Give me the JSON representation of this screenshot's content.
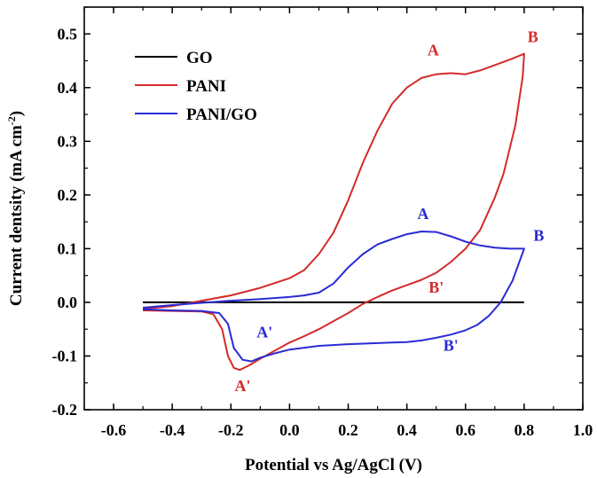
{
  "chart_data": {
    "type": "line",
    "xlabel": "Potential vs Ag/AgCl (V)",
    "ylabel_main": "Current dentsity (mA cm",
    "ylabel_sup": "-2",
    "ylabel_close": ")",
    "xlim": [
      -0.7,
      1.0
    ],
    "ylim": [
      -0.2,
      0.55
    ],
    "x_ticks": [
      -0.6,
      -0.4,
      -0.2,
      0.0,
      0.2,
      0.4,
      0.6,
      0.8,
      1.0
    ],
    "x_tick_labels": [
      "-0.6",
      "-0.4",
      "-0.2",
      "0.0",
      "0.2",
      "0.4",
      "0.6",
      "0.8",
      "1.0"
    ],
    "y_ticks": [
      -0.2,
      -0.1,
      0.0,
      0.1,
      0.2,
      0.3,
      0.4,
      0.5
    ],
    "y_tick_labels": [
      "-0.2",
      "-0.1",
      "0.0",
      "0.1",
      "0.2",
      "0.3",
      "0.4",
      "0.5"
    ],
    "grid": false,
    "legend_position": "top-left",
    "series": [
      {
        "name": "GO",
        "color": "#000000",
        "points": [
          [
            -0.5,
            0.0
          ],
          [
            0.8,
            0.0
          ]
        ]
      },
      {
        "name": "PANI",
        "color": "#d42a2a",
        "points": [
          [
            -0.5,
            -0.012
          ],
          [
            -0.4,
            -0.007
          ],
          [
            -0.3,
            0.003
          ],
          [
            -0.2,
            0.013
          ],
          [
            -0.1,
            0.027
          ],
          [
            0.0,
            0.045
          ],
          [
            0.05,
            0.06
          ],
          [
            0.1,
            0.09
          ],
          [
            0.15,
            0.13
          ],
          [
            0.2,
            0.19
          ],
          [
            0.25,
            0.26
          ],
          [
            0.3,
            0.32
          ],
          [
            0.35,
            0.37
          ],
          [
            0.4,
            0.4
          ],
          [
            0.45,
            0.418
          ],
          [
            0.5,
            0.425
          ],
          [
            0.55,
            0.427
          ],
          [
            0.6,
            0.425
          ],
          [
            0.65,
            0.432
          ],
          [
            0.7,
            0.442
          ],
          [
            0.75,
            0.452
          ],
          [
            0.8,
            0.463
          ],
          [
            0.795,
            0.42
          ],
          [
            0.77,
            0.33
          ],
          [
            0.73,
            0.24
          ],
          [
            0.7,
            0.195
          ],
          [
            0.65,
            0.135
          ],
          [
            0.6,
            0.1
          ],
          [
            0.55,
            0.075
          ],
          [
            0.5,
            0.055
          ],
          [
            0.45,
            0.042
          ],
          [
            0.4,
            0.032
          ],
          [
            0.35,
            0.022
          ],
          [
            0.3,
            0.01
          ],
          [
            0.25,
            -0.003
          ],
          [
            0.2,
            -0.02
          ],
          [
            0.15,
            -0.035
          ],
          [
            0.1,
            -0.05
          ],
          [
            0.05,
            -0.063
          ],
          [
            0.0,
            -0.075
          ],
          [
            -0.05,
            -0.09
          ],
          [
            -0.1,
            -0.105
          ],
          [
            -0.14,
            -0.118
          ],
          [
            -0.17,
            -0.126
          ],
          [
            -0.19,
            -0.122
          ],
          [
            -0.21,
            -0.1
          ],
          [
            -0.23,
            -0.05
          ],
          [
            -0.26,
            -0.022
          ],
          [
            -0.3,
            -0.017
          ],
          [
            -0.4,
            -0.016
          ],
          [
            -0.5,
            -0.015
          ]
        ]
      },
      {
        "name": "PANI/GO",
        "color": "#2a2ad4",
        "points": [
          [
            -0.5,
            -0.01
          ],
          [
            -0.4,
            -0.005
          ],
          [
            -0.3,
            -0.001
          ],
          [
            -0.2,
            0.003
          ],
          [
            -0.1,
            0.006
          ],
          [
            0.0,
            0.01
          ],
          [
            0.05,
            0.013
          ],
          [
            0.1,
            0.018
          ],
          [
            0.15,
            0.035
          ],
          [
            0.2,
            0.065
          ],
          [
            0.25,
            0.09
          ],
          [
            0.3,
            0.108
          ],
          [
            0.35,
            0.118
          ],
          [
            0.4,
            0.127
          ],
          [
            0.45,
            0.132
          ],
          [
            0.5,
            0.131
          ],
          [
            0.55,
            0.123
          ],
          [
            0.6,
            0.113
          ],
          [
            0.65,
            0.106
          ],
          [
            0.7,
            0.102
          ],
          [
            0.75,
            0.1
          ],
          [
            0.8,
            0.1
          ],
          [
            0.79,
            0.085
          ],
          [
            0.76,
            0.04
          ],
          [
            0.72,
            0.0
          ],
          [
            0.68,
            -0.025
          ],
          [
            0.64,
            -0.042
          ],
          [
            0.6,
            -0.052
          ],
          [
            0.55,
            -0.06
          ],
          [
            0.5,
            -0.066
          ],
          [
            0.45,
            -0.071
          ],
          [
            0.4,
            -0.074
          ],
          [
            0.35,
            -0.075
          ],
          [
            0.3,
            -0.076
          ],
          [
            0.2,
            -0.078
          ],
          [
            0.1,
            -0.081
          ],
          [
            0.0,
            -0.088
          ],
          [
            -0.05,
            -0.095
          ],
          [
            -0.1,
            -0.103
          ],
          [
            -0.13,
            -0.11
          ],
          [
            -0.16,
            -0.107
          ],
          [
            -0.19,
            -0.085
          ],
          [
            -0.21,
            -0.04
          ],
          [
            -0.24,
            -0.02
          ],
          [
            -0.3,
            -0.016
          ],
          [
            -0.4,
            -0.015
          ],
          [
            -0.5,
            -0.013
          ]
        ]
      }
    ],
    "annotations": [
      {
        "text": "A",
        "x": 0.49,
        "y": 0.46,
        "color": "#d42a2a"
      },
      {
        "text": "B",
        "x": 0.83,
        "y": 0.485,
        "color": "#d42a2a"
      },
      {
        "text": "A",
        "x": 0.455,
        "y": 0.155,
        "color": "#2a2ad4"
      },
      {
        "text": "B",
        "x": 0.85,
        "y": 0.115,
        "color": "#2a2ad4"
      },
      {
        "text": "B'",
        "x": 0.5,
        "y": 0.018,
        "color": "#d42a2a"
      },
      {
        "text": "A'",
        "x": -0.085,
        "y": -0.065,
        "color": "#2a2ad4"
      },
      {
        "text": "B'",
        "x": 0.55,
        "y": -0.09,
        "color": "#2a2ad4"
      },
      {
        "text": "A'",
        "x": -0.16,
        "y": -0.165,
        "color": "#d42a2a"
      }
    ]
  }
}
